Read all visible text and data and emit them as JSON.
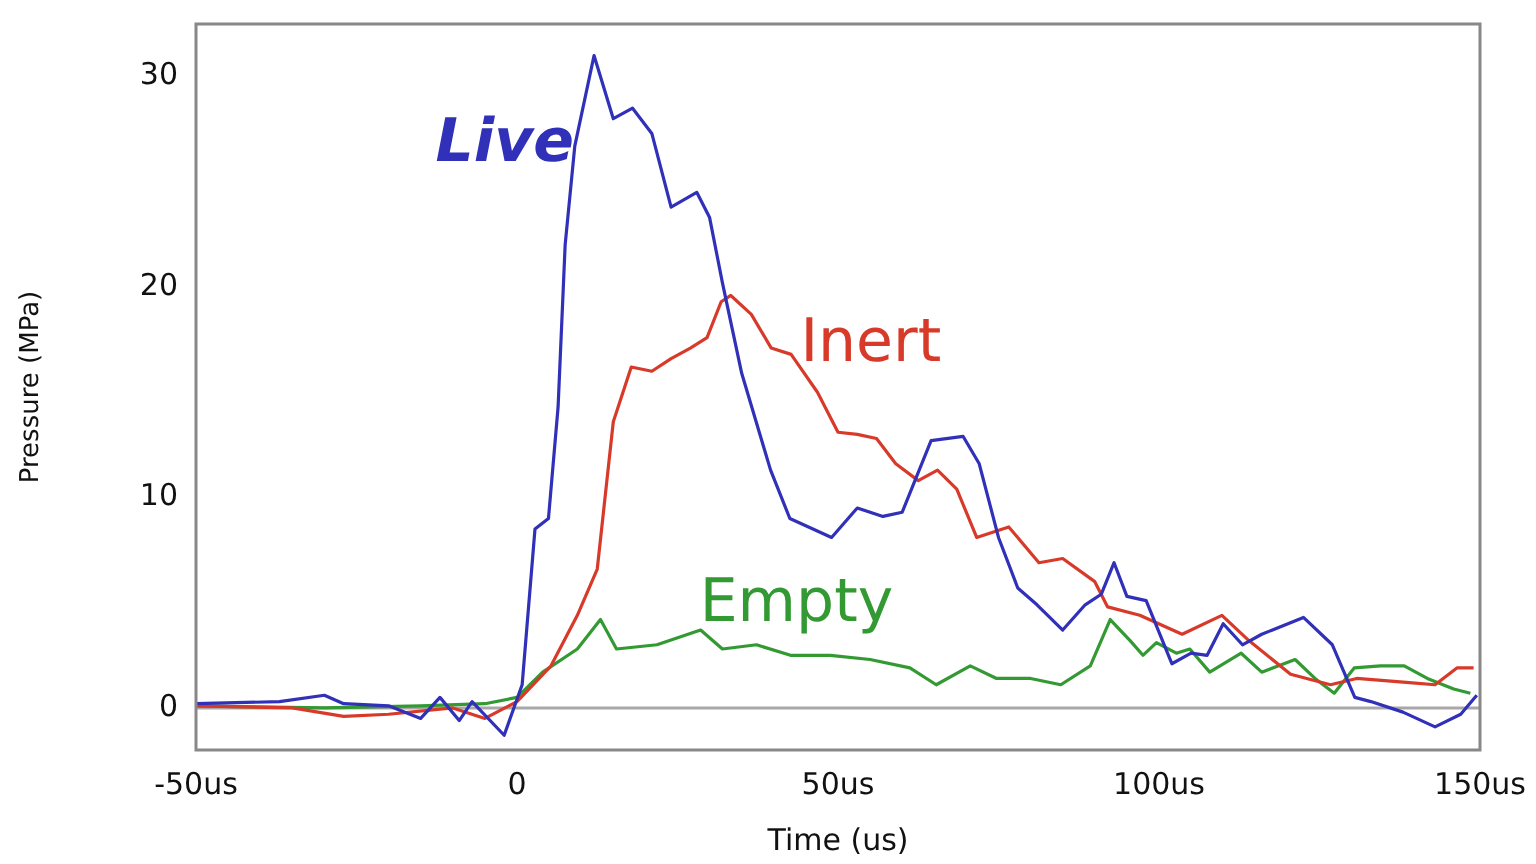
{
  "chart_data": {
    "type": "line",
    "xlabel": "Time (us)",
    "ylabel": "Pressure (MPa)",
    "xlim": [
      -50,
      150
    ],
    "xticks": [
      {
        "value": -50,
        "label": "-50us"
      },
      0,
      {
        "value": 50,
        "label": "50us"
      },
      {
        "value": 100,
        "label": "100us"
      },
      {
        "value": 150,
        "label": "150us"
      }
    ],
    "ylim": [
      -2,
      32.5
    ],
    "yticks": [
      0,
      10,
      20,
      30
    ],
    "grid": false,
    "legend": false,
    "marker": "none",
    "line_style": "solid",
    "ref_lines": [
      {
        "axis": "y",
        "value": 0,
        "color": "#a8a8a8"
      }
    ],
    "series": [
      {
        "name": "Live",
        "color": "#3030b8",
        "x": [
          -50,
          -37,
          -30,
          -27,
          -20,
          -15,
          -12,
          -9,
          -7,
          -2,
          0.8,
          2.8,
          4.9,
          6.4,
          7.5,
          9,
          12,
          15,
          18,
          21,
          24,
          28,
          30,
          32,
          35,
          39.5,
          42.5,
          49,
          53,
          57,
          60,
          64.5,
          69.5,
          72,
          75,
          78,
          81,
          85,
          88.5,
          91,
          93,
          95,
          98,
          102,
          105,
          107.5,
          110,
          113,
          116,
          122.5,
          127,
          130.5,
          133,
          138,
          143,
          147,
          149.5
        ],
        "values": [
          0.2,
          0.3,
          0.6,
          0.2,
          0.1,
          -0.5,
          0.5,
          -0.6,
          0.3,
          -1.3,
          1.1,
          8.5,
          9,
          14.3,
          22,
          26.7,
          31,
          28,
          28.5,
          27.3,
          23.8,
          24.5,
          23.3,
          20.2,
          15.9,
          11.3,
          9,
          8.1,
          9.5,
          9.1,
          9.3,
          12.7,
          12.9,
          11.6,
          8.1,
          5.7,
          4.9,
          3.7,
          4.9,
          5.4,
          6.9,
          5.3,
          5.1,
          2.1,
          2.6,
          2.5,
          4,
          3,
          3.5,
          4.3,
          3,
          0.5,
          0.3,
          -0.2,
          -0.9,
          -0.3,
          0.6
        ]
      },
      {
        "name": "Inert",
        "color": "#d83a2a",
        "x": [
          -50,
          -35,
          -27,
          -20,
          -10,
          -5,
          0,
          5.3,
          9.4,
          12.5,
          15,
          17.8,
          21,
          24,
          27,
          29.6,
          31.8,
          33.3,
          36.5,
          39.6,
          42.7,
          46.8,
          50,
          53,
          56,
          59,
          62.5,
          65.5,
          68.5,
          71.6,
          76.6,
          81.3,
          85,
          90,
          92,
          97,
          103.6,
          109.8,
          114,
          120.5,
          126.7,
          130.8,
          139,
          143,
          146.4,
          149
        ],
        "values": [
          0.1,
          0,
          -0.4,
          -0.3,
          0,
          -0.5,
          0.3,
          2,
          4.4,
          6.6,
          13.6,
          16.2,
          16,
          16.6,
          17.1,
          17.6,
          19.3,
          19.6,
          18.7,
          17.1,
          16.8,
          15,
          13.1,
          13,
          12.8,
          11.6,
          10.8,
          11.3,
          10.4,
          8.1,
          8.6,
          6.9,
          7.1,
          6,
          4.8,
          4.4,
          3.5,
          4.4,
          3.2,
          1.6,
          1.1,
          1.4,
          1.2,
          1.1,
          1.9,
          1.9
        ]
      },
      {
        "name": "Empty",
        "color": "#339933",
        "x": [
          -50,
          -30,
          -15,
          -5,
          0,
          4,
          9.4,
          13,
          15.5,
          21.8,
          28.6,
          32,
          37.3,
          42.6,
          48.8,
          55,
          61.2,
          65.3,
          70.6,
          74.7,
          80,
          84.7,
          89.3,
          92.4,
          95.5,
          97.5,
          99.6,
          102.7,
          104.8,
          107.9,
          112.8,
          116,
          121.2,
          124.3,
          127.3,
          130.4,
          134.5,
          138.2,
          141.8,
          145.9,
          148.5
        ],
        "values": [
          0.1,
          0,
          0.1,
          0.2,
          0.5,
          1.7,
          2.8,
          4.2,
          2.8,
          3,
          3.7,
          2.8,
          3,
          2.5,
          2.5,
          2.3,
          1.9,
          1.1,
          2,
          1.4,
          1.4,
          1.1,
          2,
          4.2,
          3.2,
          2.5,
          3.1,
          2.6,
          2.8,
          1.7,
          2.6,
          1.7,
          2.3,
          1.4,
          0.7,
          1.9,
          2,
          2,
          1.4,
          0.9,
          0.7
        ]
      }
    ]
  }
}
